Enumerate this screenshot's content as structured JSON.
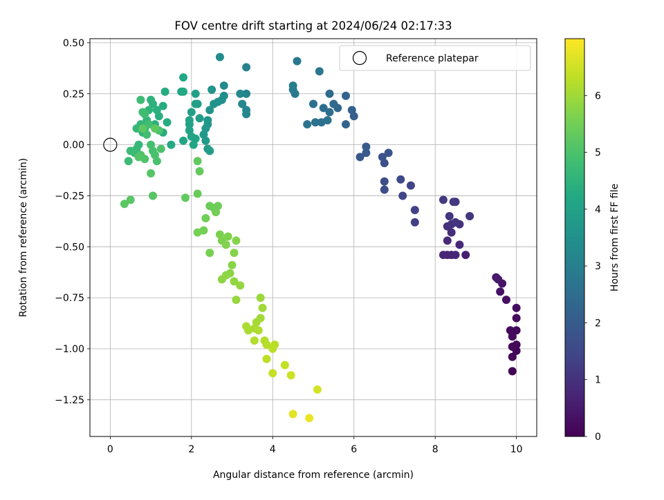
{
  "chart_data": {
    "type": "scatter",
    "title": "FOV centre drift starting at 2024/06/24 02:17:33",
    "xlabel": "Angular distance from reference (arcmin)",
    "ylabel": "Rotation from reference (arcmin)",
    "xlim": [
      -0.5,
      10.5
    ],
    "ylim": [
      -1.43,
      0.52
    ],
    "xticks": [
      0,
      2,
      4,
      6,
      8,
      10
    ],
    "xtick_labels": [
      "0",
      "2",
      "4",
      "6",
      "8",
      "10"
    ],
    "yticks": [
      0.5,
      0.25,
      0.0,
      -0.25,
      -0.5,
      -0.75,
      -1.0,
      -1.25
    ],
    "ytick_labels": [
      "0.50",
      "0.25",
      "0.00",
      "−0.25",
      "−0.50",
      "−0.75",
      "−1.00",
      "−1.25"
    ],
    "grid": true,
    "legend": {
      "label": "Reference platepar",
      "placement": "top-right"
    },
    "reference_point": {
      "x": 0.0,
      "y": 0.0
    },
    "colorbar": {
      "label": "Hours from first FF file",
      "colormap": "viridis",
      "range": [
        0,
        7.0
      ],
      "ticks": [
        0,
        1,
        2,
        3,
        4,
        5,
        6
      ],
      "tick_labels": [
        "0",
        "1",
        "2",
        "3",
        "4",
        "5",
        "6"
      ]
    },
    "points": [
      [
        9.9,
        -1.11,
        0.05
      ],
      [
        10.0,
        -1.01,
        0.08
      ],
      [
        9.9,
        -1.04,
        0.1
      ],
      [
        10.0,
        -0.98,
        0.12
      ],
      [
        9.9,
        -0.99,
        0.14
      ],
      [
        10.0,
        -0.91,
        0.16
      ],
      [
        9.85,
        -0.91,
        0.18
      ],
      [
        9.9,
        -0.94,
        0.2
      ],
      [
        10.0,
        -0.85,
        0.22
      ],
      [
        10.0,
        -0.8,
        0.25
      ],
      [
        9.75,
        -0.76,
        0.3
      ],
      [
        9.6,
        -0.72,
        0.35
      ],
      [
        9.65,
        -0.68,
        0.4
      ],
      [
        9.55,
        -0.66,
        0.45
      ],
      [
        9.5,
        -0.65,
        0.5
      ],
      [
        8.75,
        -0.54,
        0.6
      ],
      [
        8.4,
        -0.54,
        0.65
      ],
      [
        8.3,
        -0.54,
        0.7
      ],
      [
        8.2,
        -0.54,
        0.72
      ],
      [
        8.5,
        -0.54,
        0.75
      ],
      [
        8.6,
        -0.49,
        0.8
      ],
      [
        8.3,
        -0.47,
        0.85
      ],
      [
        8.4,
        -0.43,
        0.9
      ],
      [
        8.3,
        -0.4,
        0.95
      ],
      [
        8.6,
        -0.39,
        1.0
      ],
      [
        8.4,
        -0.39,
        1.02
      ],
      [
        8.35,
        -0.35,
        1.05
      ],
      [
        8.5,
        -0.38,
        1.08
      ],
      [
        8.85,
        -0.35,
        1.1
      ],
      [
        8.5,
        -0.28,
        1.12
      ],
      [
        8.45,
        -0.28,
        1.15
      ],
      [
        8.2,
        -0.27,
        1.2
      ],
      [
        7.5,
        -0.38,
        1.3
      ],
      [
        7.5,
        -0.32,
        1.35
      ],
      [
        7.4,
        -0.2,
        1.4
      ],
      [
        7.2,
        -0.25,
        1.45
      ],
      [
        7.15,
        -0.17,
        1.5
      ],
      [
        6.75,
        -0.22,
        1.6
      ],
      [
        6.75,
        -0.18,
        1.65
      ],
      [
        6.75,
        -0.09,
        1.7
      ],
      [
        6.7,
        -0.06,
        1.75
      ],
      [
        6.85,
        -0.04,
        1.8
      ],
      [
        6.15,
        -0.06,
        1.9
      ],
      [
        6.3,
        -0.04,
        1.95
      ],
      [
        6.3,
        -0.01,
        2.0
      ],
      [
        6.0,
        0.14,
        2.1
      ],
      [
        5.95,
        0.17,
        2.15
      ],
      [
        5.8,
        0.1,
        2.2
      ],
      [
        5.8,
        0.24,
        2.25
      ],
      [
        5.6,
        0.18,
        2.3
      ],
      [
        5.5,
        0.2,
        2.35
      ],
      [
        5.4,
        0.25,
        2.4
      ],
      [
        5.4,
        0.16,
        2.45
      ],
      [
        5.25,
        0.18,
        2.5
      ],
      [
        5.0,
        0.2,
        2.55
      ],
      [
        5.2,
        0.11,
        2.6
      ],
      [
        5.05,
        0.11,
        2.62
      ],
      [
        5.35,
        0.12,
        2.65
      ],
      [
        4.85,
        0.1,
        2.7
      ],
      [
        5.15,
        0.36,
        2.75
      ],
      [
        4.6,
        0.41,
        2.8
      ],
      [
        4.55,
        0.25,
        2.85
      ],
      [
        4.5,
        0.27,
        2.9
      ],
      [
        4.5,
        0.29,
        2.95
      ],
      [
        3.35,
        0.38,
        3.05
      ],
      [
        3.35,
        0.25,
        3.1
      ],
      [
        3.35,
        0.15,
        3.15
      ],
      [
        3.35,
        0.17,
        3.18
      ],
      [
        3.25,
        0.2,
        3.2
      ],
      [
        3.2,
        0.25,
        3.25
      ],
      [
        2.8,
        0.29,
        3.3
      ],
      [
        2.7,
        0.43,
        3.35
      ],
      [
        2.8,
        0.24,
        3.4
      ],
      [
        2.75,
        0.22,
        3.45
      ],
      [
        2.65,
        0.21,
        3.5
      ],
      [
        2.55,
        0.2,
        3.55
      ],
      [
        2.5,
        0.27,
        3.58
      ],
      [
        2.45,
        0.17,
        3.6
      ],
      [
        2.4,
        0.12,
        3.65
      ],
      [
        2.4,
        0.1,
        3.68
      ],
      [
        2.35,
        0.08,
        3.7
      ],
      [
        2.3,
        0.05,
        3.75
      ],
      [
        2.35,
        0.02,
        3.78
      ],
      [
        2.4,
        -0.02,
        3.8
      ],
      [
        2.45,
        -0.03,
        3.85
      ],
      [
        2.2,
        0.13,
        3.87
      ],
      [
        2.15,
        0.2,
        3.9
      ],
      [
        2.1,
        0.2,
        3.92
      ],
      [
        2.1,
        0.25,
        3.95
      ],
      [
        2.0,
        0.16,
        3.97
      ],
      [
        1.95,
        0.1,
        4.0
      ],
      [
        1.95,
        0.12,
        4.02
      ],
      [
        1.95,
        0.07,
        4.05
      ],
      [
        2.0,
        0.04,
        4.07
      ],
      [
        2.1,
        0.03,
        4.1
      ],
      [
        2.05,
        0.0,
        4.12
      ],
      [
        1.8,
        0.02,
        4.15
      ],
      [
        1.75,
        0.26,
        4.18
      ],
      [
        1.8,
        0.33,
        4.2
      ],
      [
        1.8,
        0.26,
        4.22
      ],
      [
        1.5,
        0.0,
        4.25
      ],
      [
        1.35,
        0.26,
        4.28
      ],
      [
        1.3,
        0.19,
        4.3
      ],
      [
        1.4,
        0.11,
        4.32
      ],
      [
        1.3,
        0.06,
        4.35
      ],
      [
        1.2,
        0.14,
        4.38
      ],
      [
        1.15,
        0.17,
        4.4
      ],
      [
        1.1,
        0.1,
        4.42
      ],
      [
        1.05,
        0.2,
        4.45
      ],
      [
        1.0,
        0.22,
        4.47
      ],
      [
        0.95,
        0.17,
        4.5
      ],
      [
        0.9,
        0.12,
        4.52
      ],
      [
        0.85,
        0.08,
        4.55
      ],
      [
        0.8,
        0.06,
        4.57
      ],
      [
        0.75,
        0.1,
        4.6
      ],
      [
        0.7,
        0.0,
        4.62
      ],
      [
        0.65,
        -0.02,
        4.65
      ],
      [
        0.65,
        0.08,
        4.67
      ],
      [
        0.6,
        -0.04,
        4.7
      ],
      [
        0.5,
        -0.03,
        4.72
      ],
      [
        0.45,
        -0.08,
        4.75
      ],
      [
        0.75,
        0.22,
        4.77
      ],
      [
        0.8,
        0.16,
        4.8
      ],
      [
        0.85,
        0.15,
        4.82
      ],
      [
        0.9,
        0.05,
        4.85
      ],
      [
        0.95,
        0.1,
        4.87
      ],
      [
        1.0,
        0.0,
        4.9
      ],
      [
        1.05,
        -0.03,
        4.92
      ],
      [
        1.1,
        -0.05,
        4.95
      ],
      [
        1.15,
        -0.08,
        4.97
      ],
      [
        1.2,
        0.07,
        5.0
      ],
      [
        1.25,
        -0.02,
        5.02
      ],
      [
        0.85,
        -0.07,
        5.05
      ],
      [
        0.75,
        -0.05,
        5.07
      ],
      [
        0.7,
        -0.06,
        5.1
      ],
      [
        1.0,
        -0.14,
        5.12
      ],
      [
        1.05,
        -0.25,
        5.15
      ],
      [
        0.5,
        -0.27,
        5.18
      ],
      [
        0.35,
        -0.29,
        5.2
      ],
      [
        0.8,
        0.08,
        5.22
      ],
      [
        1.1,
        0.08,
        5.25
      ],
      [
        1.85,
        -0.26,
        5.28
      ],
      [
        2.15,
        -0.08,
        5.3
      ],
      [
        2.2,
        -0.13,
        5.32
      ],
      [
        2.15,
        -0.24,
        5.35
      ],
      [
        2.45,
        -0.3,
        5.4
      ],
      [
        2.55,
        -0.31,
        5.42
      ],
      [
        2.65,
        -0.3,
        5.45
      ],
      [
        2.35,
        -0.36,
        5.47
      ],
      [
        2.6,
        -0.33,
        5.5
      ],
      [
        2.3,
        -0.42,
        5.52
      ],
      [
        2.15,
        -0.43,
        5.55
      ],
      [
        2.45,
        -0.53,
        5.57
      ],
      [
        2.7,
        -0.44,
        5.6
      ],
      [
        2.75,
        -0.47,
        5.62
      ],
      [
        2.9,
        -0.45,
        5.65
      ],
      [
        2.85,
        -0.49,
        5.67
      ],
      [
        3.1,
        -0.47,
        5.7
      ],
      [
        3.05,
        -0.53,
        5.72
      ],
      [
        3.0,
        -0.59,
        5.75
      ],
      [
        2.95,
        -0.63,
        5.77
      ],
      [
        2.85,
        -0.64,
        5.8
      ],
      [
        2.75,
        -0.66,
        5.82
      ],
      [
        3.05,
        -0.67,
        5.85
      ],
      [
        3.2,
        -0.69,
        5.87
      ],
      [
        3.1,
        -0.76,
        5.9
      ],
      [
        3.7,
        -0.75,
        5.95
      ],
      [
        3.75,
        -0.8,
        6.0
      ],
      [
        3.7,
        -0.85,
        6.02
      ],
      [
        3.6,
        -0.87,
        6.05
      ],
      [
        3.55,
        -0.9,
        6.08
      ],
      [
        3.4,
        -0.91,
        6.1
      ],
      [
        3.35,
        -0.89,
        6.12
      ],
      [
        3.65,
        -0.91,
        6.15
      ],
      [
        3.55,
        -0.96,
        6.18
      ],
      [
        3.8,
        -0.96,
        6.2
      ],
      [
        3.85,
        -0.98,
        6.22
      ],
      [
        4.05,
        -0.98,
        6.25
      ],
      [
        4.0,
        -1.0,
        6.28
      ],
      [
        3.85,
        -1.05,
        6.3
      ],
      [
        4.3,
        -1.08,
        6.35
      ],
      [
        4.0,
        -1.12,
        6.4
      ],
      [
        4.45,
        -1.13,
        6.45
      ],
      [
        5.1,
        -1.2,
        6.55
      ],
      [
        4.5,
        -1.32,
        6.7
      ],
      [
        4.9,
        -1.34,
        6.8
      ]
    ]
  }
}
